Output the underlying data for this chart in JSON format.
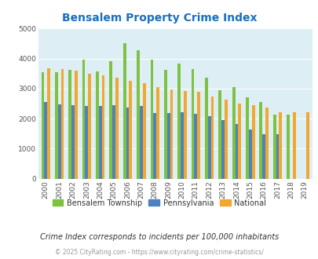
{
  "title": "Bensalem Property Crime Index",
  "years": [
    2000,
    2001,
    2002,
    2003,
    2004,
    2005,
    2006,
    2007,
    2008,
    2009,
    2010,
    2011,
    2012,
    2013,
    2014,
    2015,
    2016,
    2017,
    2018,
    2019
  ],
  "bensalem": [
    3550,
    3550,
    3620,
    3960,
    3580,
    3900,
    4500,
    4280,
    3950,
    3620,
    3840,
    3660,
    3350,
    2950,
    3060,
    2700,
    2560,
    2140,
    2130,
    0
  ],
  "pennsylvania": [
    2560,
    2470,
    2460,
    2420,
    2430,
    2450,
    2360,
    2430,
    2190,
    2190,
    2210,
    2150,
    2080,
    1960,
    1830,
    1640,
    1490,
    1490,
    0,
    0
  ],
  "national": [
    3670,
    3650,
    3600,
    3500,
    3450,
    3350,
    3250,
    3190,
    3060,
    2960,
    2920,
    2880,
    2730,
    2620,
    2490,
    2450,
    2360,
    2200,
    2200,
    2200
  ],
  "color_bensalem": "#7dc242",
  "color_pennsylvania": "#4f81bd",
  "color_national": "#f0a830",
  "bg_color": "#ddeef5",
  "title_color": "#1a6fbe",
  "ylabel_max": 5000,
  "note_text": "Crime Index corresponds to incidents per 100,000 inhabitants",
  "footer_text": "© 2025 CityRating.com - https://www.cityrating.com/crime-statistics/",
  "bar_width": 0.22
}
